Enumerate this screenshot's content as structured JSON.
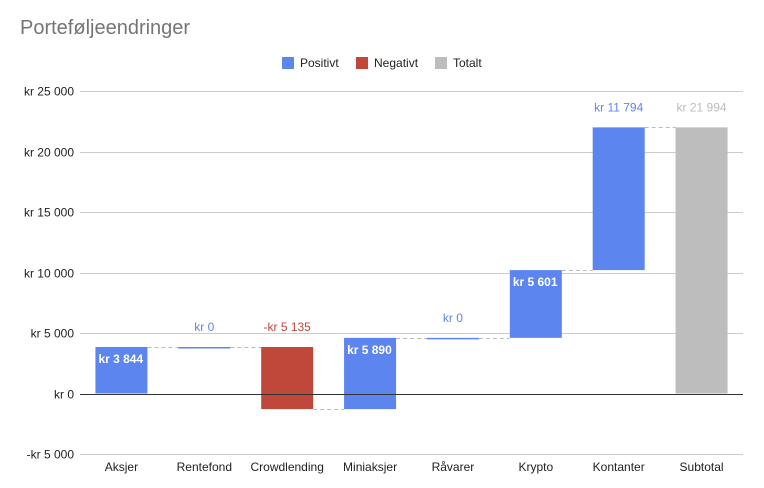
{
  "chart_data": {
    "type": "waterfall",
    "title": "Porteføljeendringer",
    "legend": {
      "placement": "top",
      "items": [
        {
          "key": "positive",
          "label": "Positivt",
          "color": "#5c85f0"
        },
        {
          "key": "negative",
          "label": "Negativt",
          "color": "#c0483a"
        },
        {
          "key": "total",
          "label": "Totalt",
          "color": "#bdbdbd"
        }
      ]
    },
    "categories": [
      "Aksjer",
      "Rentefond",
      "Crowdlending",
      "Miniaksjer",
      "Råvarer",
      "Krypto",
      "Kontanter",
      "Subtotal"
    ],
    "steps": [
      {
        "category": "Aksjer",
        "kind": "positive",
        "start": 0,
        "end": 3844,
        "label": "kr  3 844",
        "label_inside": true
      },
      {
        "category": "Rentefond",
        "kind": "positive",
        "start": 3844,
        "end": 3844,
        "label": "kr  0",
        "label_inside": false
      },
      {
        "category": "Crowdlending",
        "kind": "negative",
        "start": 3844,
        "end": -1291,
        "label": "-kr  5 135",
        "label_inside": false
      },
      {
        "category": "Miniaksjer",
        "kind": "positive",
        "start": -1291,
        "end": 4599,
        "label": "kr  5 890",
        "label_inside": true
      },
      {
        "category": "Råvarer",
        "kind": "positive",
        "start": 4599,
        "end": 4599,
        "label": "kr  0",
        "label_inside": false
      },
      {
        "category": "Krypto",
        "kind": "positive",
        "start": 4599,
        "end": 10200,
        "label": "kr  5 601",
        "label_inside": true
      },
      {
        "category": "Kontanter",
        "kind": "positive",
        "start": 10200,
        "end": 21994,
        "label": "kr  11 794",
        "label_inside": false
      },
      {
        "category": "Subtotal",
        "kind": "total",
        "start": 0,
        "end": 21994,
        "label": "kr  21 994",
        "label_inside": false
      }
    ],
    "ylim": [
      -5000,
      25000
    ],
    "y_ticks": [
      {
        "value": 25000,
        "label": "kr  25 000"
      },
      {
        "value": 20000,
        "label": "kr  20 000"
      },
      {
        "value": 15000,
        "label": "kr  15 000"
      },
      {
        "value": 10000,
        "label": "kr  10 000"
      },
      {
        "value": 5000,
        "label": "kr  5 000"
      },
      {
        "value": 0,
        "label": "kr   0"
      },
      {
        "value": -5000,
        "label": "-kr  5 000"
      }
    ],
    "grid": true,
    "xlabel": "",
    "ylabel": ""
  }
}
